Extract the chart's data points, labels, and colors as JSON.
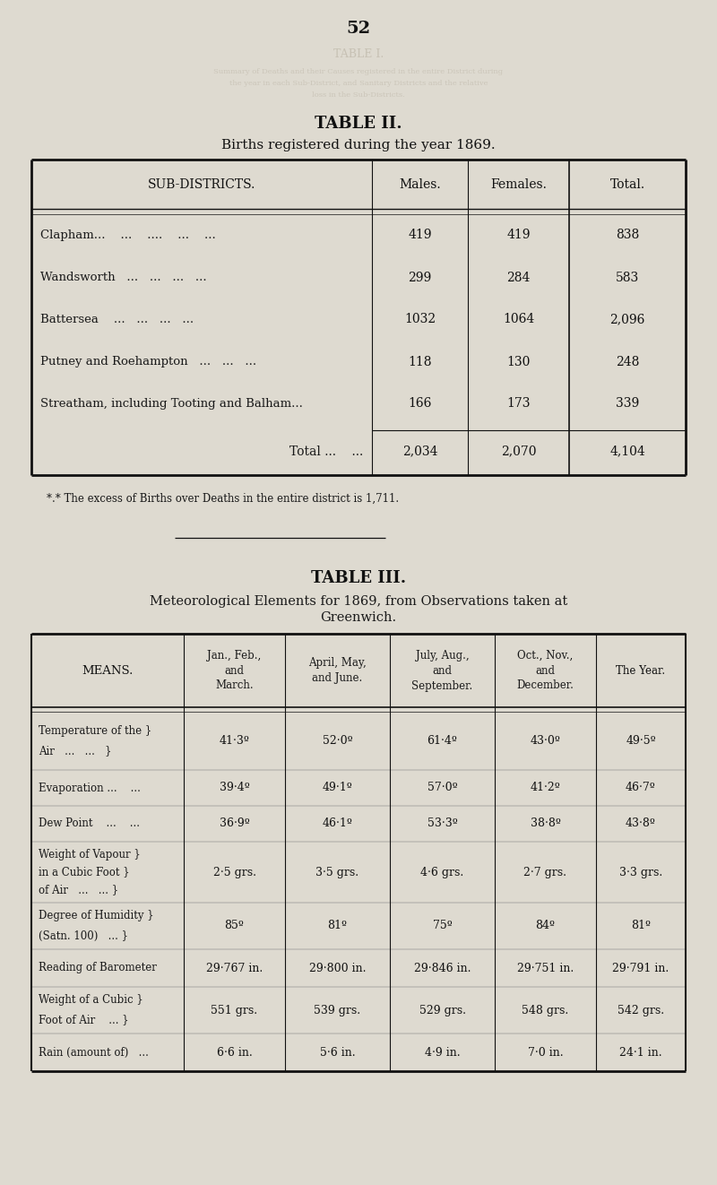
{
  "page_number": "52",
  "bg_color": "#dedad0",
  "text_color": "#1a1a1a",
  "table2": {
    "title": "TABLE II.",
    "subtitle": "Births registered during the year 1869.",
    "col_headers": [
      "SUB-DISTRICTS.",
      "Males.",
      "Females.",
      "Total."
    ],
    "rows": [
      [
        "Clapham...    ...    ....    ...    ...",
        "419",
        "419",
        "838"
      ],
      [
        "Wandsworth   ...   ...   ...   ...",
        "299",
        "284",
        "583"
      ],
      [
        "Battersea    ...   ...   ...   ...",
        "1032",
        "1064",
        "2,096"
      ],
      [
        "Putney and Roehampton   ...   ...   ...",
        "118",
        "130",
        "248"
      ],
      [
        "Streatham, including Tooting and Balham...",
        "166",
        "173",
        "339"
      ]
    ],
    "total_row": [
      "Total ...    ...",
      "2,034",
      "2,070",
      "4,104"
    ],
    "footnote": "*.* The excess of Births over Deaths in the entire district is 1,711."
  },
  "table3": {
    "title": "TABLE III.",
    "subtitle_line1": "Meteorological Elements for 1869, from Observations taken at",
    "subtitle_line2": "Greenwich.",
    "rows": [
      [
        "Temperature of the }",
        "Air   ...   ...   }",
        "41·3º",
        "52·0º",
        "61·4º",
        "43·0º",
        "49·5º"
      ],
      [
        "Evaporation ...    ...",
        "",
        "39·4º",
        "49·1º",
        "57·0º",
        "41·2º",
        "46·7º"
      ],
      [
        "Dew Point    ...    ...",
        "",
        "36·9º",
        "46·1º",
        "53·3º",
        "38·8º",
        "43·8º"
      ],
      [
        "Weight of Vapour }",
        "in a Cubic Foot }",
        "2·5 grs.",
        "3·5 grs.",
        "4·6 grs.",
        "2·7 grs.",
        "3·3 grs."
      ],
      [
        "Degree of Humidity }",
        "(Satn. 100)   ... }",
        "85º",
        "81º",
        "75º",
        "84º",
        "81º"
      ],
      [
        "Reading of Barometer",
        "",
        "29·767 in.",
        "29·800 in.",
        "29·846 in.",
        "29·751 in.",
        "29·791 in."
      ],
      [
        "Weight of a Cubic }",
        "Foot of Air    ... }",
        "551 grs.",
        "539 grs.",
        "529 grs.",
        "548 grs.",
        "542 grs."
      ],
      [
        "Rain (amount of)   ...",
        "",
        "6·6 in.",
        "5·6 in.",
        "4·9 in.",
        "7·0 in.",
        "24·1 in."
      ]
    ],
    "row3_extra": "of Air   ...   ... }"
  }
}
